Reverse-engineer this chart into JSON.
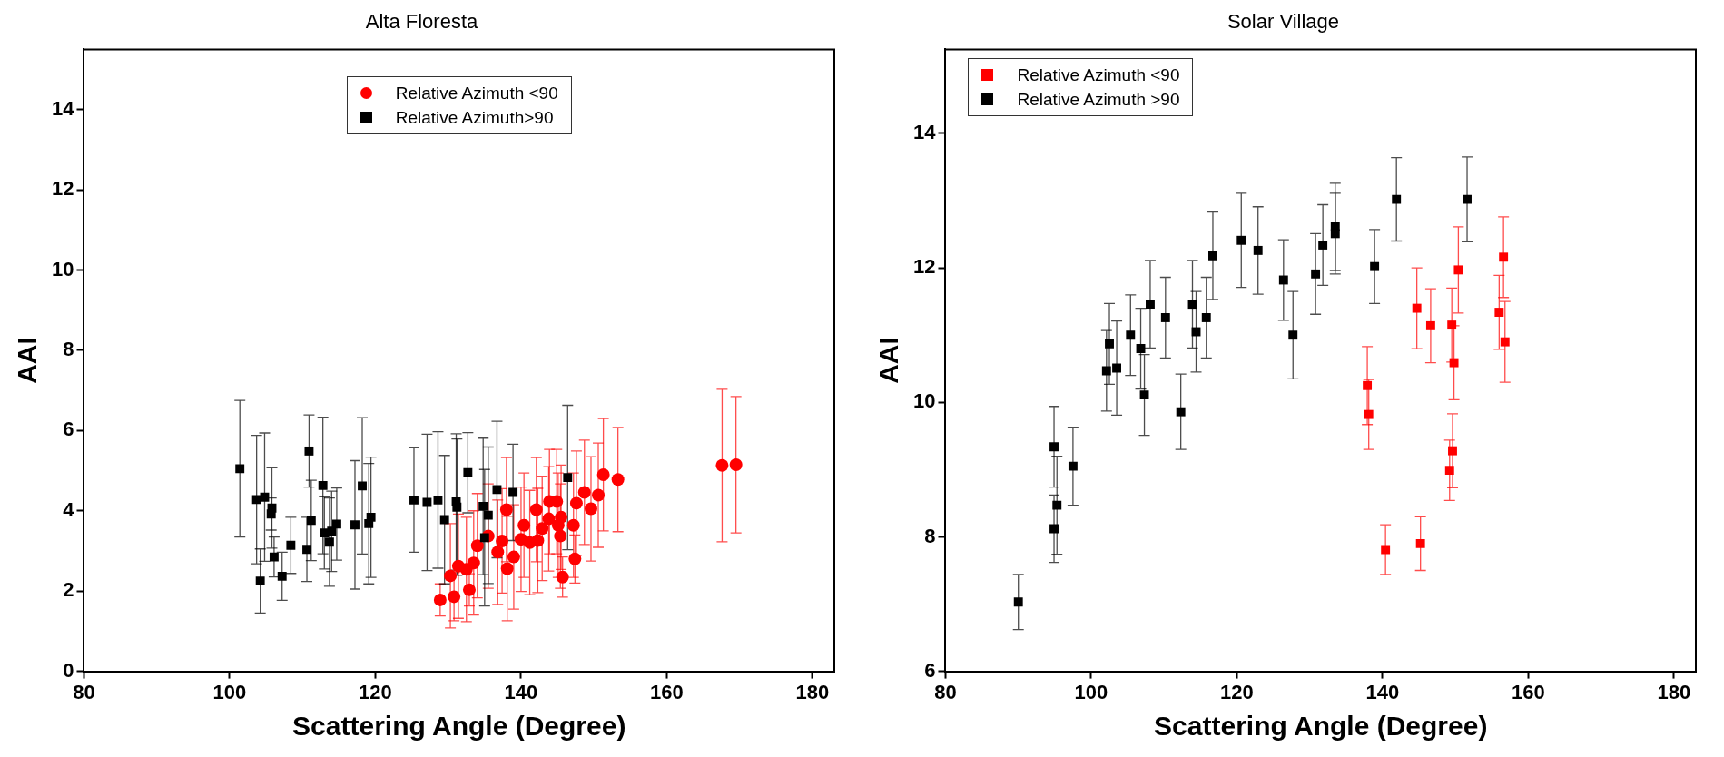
{
  "chart_data": [
    {
      "type": "scatter",
      "title": "Alta Floresta",
      "xlabel": "Scattering Angle (Degree)",
      "ylabel": "AAI",
      "xlim": [
        80,
        183
      ],
      "xticks": [
        80,
        100,
        120,
        140,
        160,
        180
      ],
      "ylim": [
        0,
        15.5
      ],
      "yticks": [
        0,
        2,
        4,
        6,
        8,
        10,
        12,
        14
      ],
      "grid": false,
      "legend": "top",
      "series": [
        {
          "name": "Relative Azimuth <90",
          "color": "#ff0000",
          "marker": "circle",
          "x": [
            128.9,
            130.8,
            132.9,
            130.3,
            131.4,
            132.5,
            133.5,
            134.0,
            135.5,
            136.8,
            137.4,
            138.0,
            138.1,
            139.0,
            140.0,
            140.4,
            141.2,
            142.3,
            142.1,
            142.9,
            143.8,
            143.9,
            144.9,
            145.1,
            145.5,
            145.4,
            145.7,
            147.2,
            147.4,
            147.6,
            148.7,
            149.6,
            150.6,
            151.3,
            153.3,
            167.6,
            169.5
          ],
          "values": [
            1.78,
            1.86,
            2.03,
            2.38,
            2.62,
            2.54,
            2.7,
            3.13,
            3.37,
            2.97,
            3.25,
            4.03,
            2.56,
            2.85,
            3.29,
            3.64,
            3.21,
            3.26,
            4.03,
            3.56,
            3.8,
            4.23,
            4.23,
            3.64,
            3.84,
            3.37,
            2.35,
            3.64,
            2.8,
            4.19,
            4.46,
            4.05,
            4.39,
            4.9,
            4.78,
            5.13,
            5.15
          ],
          "errors": [
            0.4,
            0.6,
            0.4,
            1.3,
            1.3,
            1.3,
            1.3,
            1.3,
            1.3,
            1.3,
            1.3,
            1.3,
            1.3,
            1.3,
            1.3,
            1.3,
            1.3,
            1.3,
            1.3,
            1.3,
            1.3,
            1.3,
            1.3,
            1.3,
            1.3,
            1.3,
            0.5,
            1.3,
            0.6,
            1.3,
            1.3,
            1.3,
            1.3,
            1.4,
            1.3,
            1.9,
            1.7
          ]
        },
        {
          "name": "Relative Azimuth>90",
          "color": "#000000",
          "marker": "square",
          "x": [
            101.4,
            103.7,
            104.2,
            104.8,
            105.8,
            105.7,
            106.1,
            107.2,
            108.4,
            110.6,
            110.9,
            111.2,
            112.8,
            113.0,
            113.7,
            114.0,
            114.7,
            117.2,
            118.2,
            119.4,
            119.1,
            125.3,
            127.1,
            128.6,
            129.5,
            131.1,
            131.2,
            132.7,
            134.8,
            135.5,
            135.0,
            136.7,
            138.9,
            146.4
          ],
          "values": [
            5.05,
            4.28,
            2.25,
            4.34,
            4.07,
            3.92,
            2.85,
            2.37,
            3.14,
            3.04,
            5.49,
            3.76,
            4.63,
            3.45,
            3.22,
            3.49,
            3.67,
            3.65,
            4.62,
            3.84,
            3.68,
            4.27,
            4.21,
            4.27,
            3.78,
            4.22,
            4.09,
            4.95,
            4.11,
            3.89,
            3.33,
            4.53,
            4.46,
            4.83
          ],
          "errors": [
            1.7,
            1.6,
            0.8,
            1.6,
            1.0,
            0.4,
            0.5,
            0.6,
            0.7,
            0.8,
            0.9,
            1.0,
            1.7,
            0.9,
            1.1,
            1.0,
            0.9,
            1.6,
            1.7,
            1.5,
            1.5,
            1.3,
            1.7,
            1.7,
            1.6,
            1.7,
            1.7,
            1.0,
            1.7,
            1.7,
            1.7,
            1.7,
            1.2,
            1.8
          ]
        }
      ]
    },
    {
      "type": "scatter",
      "title": "Solar Village",
      "xlabel": "Scattering Angle (Degree)",
      "ylabel": "AAI",
      "xlim": [
        80,
        183
      ],
      "xticks": [
        80,
        100,
        120,
        140,
        160,
        180
      ],
      "ylim": [
        6,
        15.25
      ],
      "yticks": [
        6,
        8,
        10,
        12,
        14
      ],
      "grid": false,
      "legend": "top left",
      "series": [
        {
          "name": "Relative Azimuth <90",
          "color": "#ff0000",
          "marker": "square",
          "x": [
            137.9,
            138.1,
            144.7,
            146.6,
            149.5,
            150.4,
            149.8,
            156.6,
            156.0,
            156.8,
            149.6,
            149.2,
            140.4,
            145.2
          ],
          "values": [
            10.25,
            9.82,
            11.4,
            11.14,
            11.15,
            11.97,
            10.59,
            12.16,
            11.34,
            10.9,
            9.28,
            8.99,
            7.81,
            7.9
          ],
          "errors": [
            0.58,
            0.52,
            0.6,
            0.55,
            0.55,
            0.64,
            0.55,
            0.6,
            0.55,
            0.6,
            0.55,
            0.45,
            0.37,
            0.4
          ]
        },
        {
          "name": "Relative Azimuth >90",
          "color": "#000000",
          "marker": "square",
          "x": [
            90.0,
            94.9,
            94.9,
            95.3,
            97.5,
            102.1,
            102.5,
            103.5,
            105.4,
            106.8,
            107.3,
            108.1,
            110.2,
            112.3,
            113.9,
            114.4,
            115.8,
            116.7,
            120.6,
            122.9,
            126.4,
            127.7,
            130.8,
            131.8,
            133.5,
            133.5,
            138.9,
            141.9,
            151.6
          ],
          "values": [
            7.03,
            9.34,
            8.12,
            8.47,
            9.05,
            10.47,
            10.87,
            10.51,
            11.0,
            10.8,
            10.11,
            11.46,
            11.26,
            9.86,
            11.46,
            11.05,
            11.26,
            12.18,
            12.41,
            12.26,
            11.82,
            11.0,
            11.91,
            12.34,
            12.61,
            12.51,
            12.02,
            13.02,
            13.02
          ],
          "errors": [
            0.41,
            0.6,
            0.5,
            0.73,
            0.58,
            0.6,
            0.6,
            0.7,
            0.6,
            0.6,
            0.6,
            0.65,
            0.6,
            0.56,
            0.65,
            0.6,
            0.6,
            0.65,
            0.7,
            0.65,
            0.6,
            0.65,
            0.6,
            0.6,
            0.65,
            0.6,
            0.55,
            0.62,
            0.63
          ]
        }
      ]
    }
  ]
}
